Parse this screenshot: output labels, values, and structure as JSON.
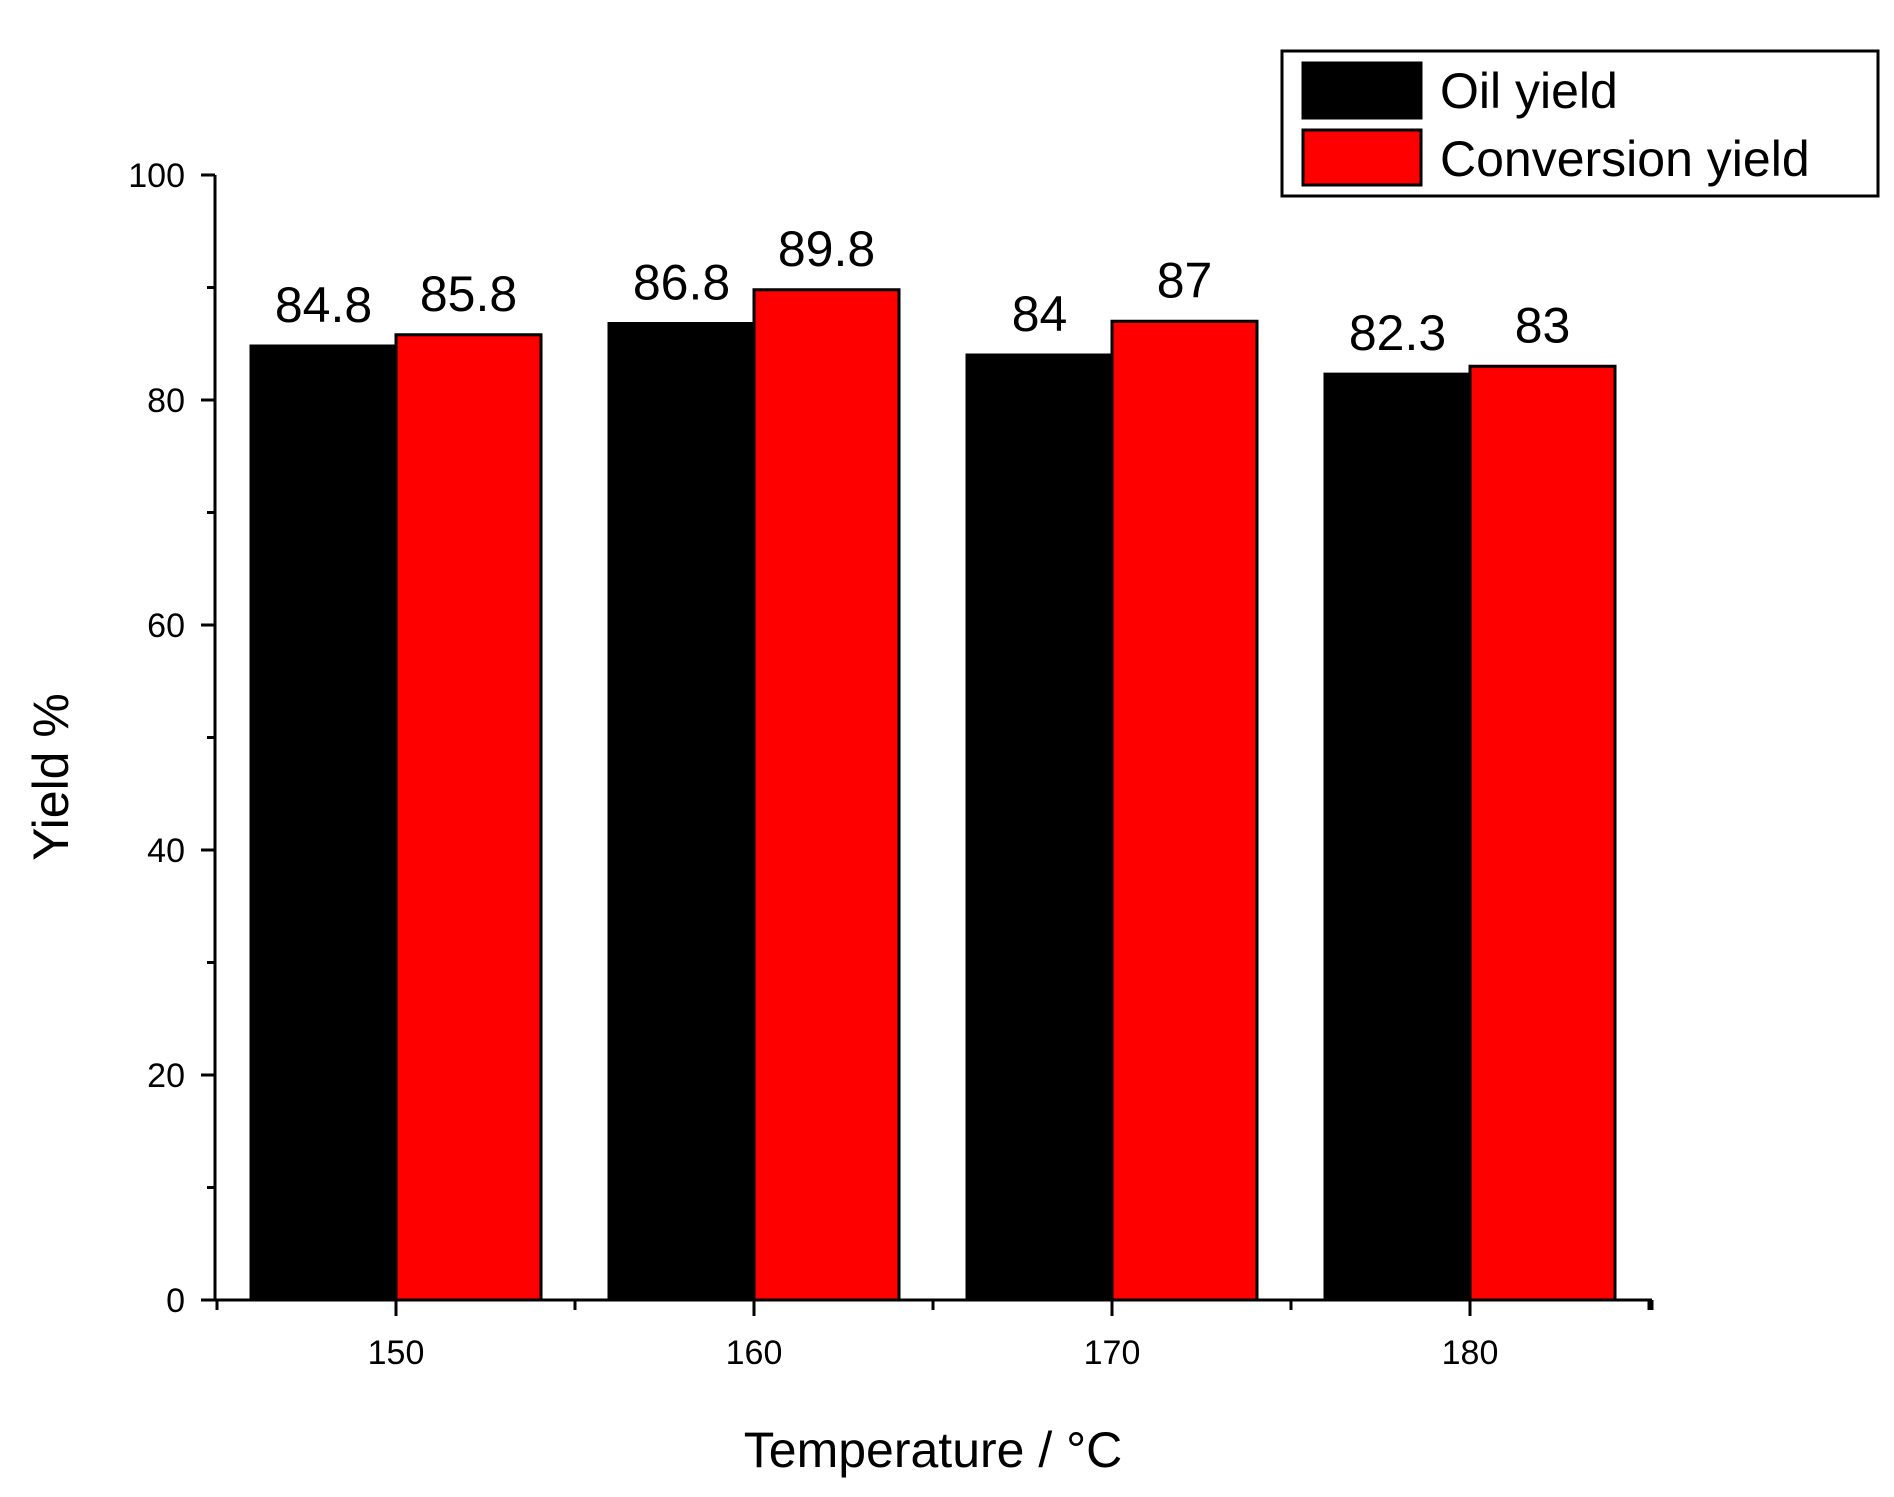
{
  "chart_data": {
    "type": "bar",
    "title": "",
    "xlabel": "Temperature / °C",
    "ylabel": "Yield %",
    "categories": [
      "150",
      "160",
      "170",
      "180"
    ],
    "ylim": [
      0,
      100
    ],
    "yticks": [
      "0",
      "20",
      "40",
      "60",
      "80",
      "100"
    ],
    "series": [
      {
        "name": "Oil yield",
        "color": "#000000",
        "values": [
          84.8,
          86.8,
          84,
          82.3
        ],
        "labels": [
          "84.8",
          "86.8",
          "84",
          "82.3"
        ]
      },
      {
        "name": "Conversion yield",
        "color": "#ff0000",
        "values": [
          85.8,
          89.8,
          87,
          83
        ],
        "labels": [
          "85.8",
          "89.8",
          "87",
          "83"
        ]
      }
    ],
    "legend": {
      "position": "top-right"
    },
    "grid": false
  }
}
